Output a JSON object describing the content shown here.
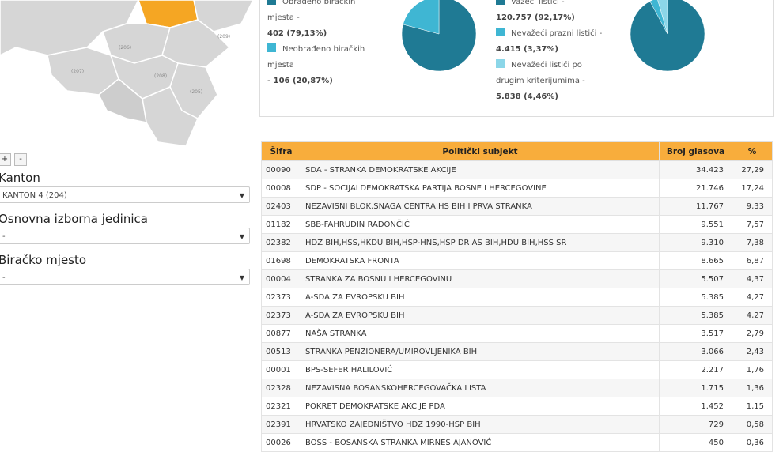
{
  "map_controls": {
    "zoom_in": "+",
    "zoom_out": "-"
  },
  "filters": [
    {
      "label": "Kanton",
      "selected": "KANTON 4 (204)"
    },
    {
      "label": "Osnovna izborna jedinica",
      "selected": "-"
    },
    {
      "label": "Biračko mjesto",
      "selected": "-"
    }
  ],
  "summaries": [
    {
      "items": [
        {
          "label": "Obrađeno biračkih mjesta -",
          "detail": "402 (79,13%)",
          "value": 79.13,
          "color": "#1f7a94"
        },
        {
          "label": "Neobrađeno biračkih mjesta",
          "detail": "- 106 (20,87%)",
          "value": 20.87,
          "color": "#3fb6d3"
        }
      ]
    },
    {
      "items": [
        {
          "label": "Važeći listići -",
          "detail": "120.757 (92,17%)",
          "value": 92.17,
          "color": "#1f7a94"
        },
        {
          "label": "Nevažeći prazni listići -",
          "detail": "4.415 (3,37%)",
          "value": 3.37,
          "color": "#3fb6d3"
        },
        {
          "label": "Nevažeći listići po drugim kriterijumima -",
          "detail": "5.838 (4,46%)",
          "value": 4.46,
          "color": "#8bd6e8"
        }
      ]
    }
  ],
  "table": {
    "header": [
      "Šifra",
      "Politički subjekt",
      "Broj glasova",
      "%"
    ],
    "rows": [
      [
        "00090",
        "SDA - STRANKA DEMOKRATSKE AKCIJE",
        "34.423",
        "27,29"
      ],
      [
        "00008",
        "SDP - SOCIJALDEMOKRATSKA PARTIJA BOSNE I HERCEGOVINE",
        "21.746",
        "17,24"
      ],
      [
        "02403",
        "NEZAVISNI BLOK,SNAGA CENTRA,HS BIH I PRVA STRANKA",
        "11.767",
        "9,33"
      ],
      [
        "01182",
        "SBB-FAHRUDIN RADONČIĆ",
        "9.551",
        "7,57"
      ],
      [
        "02382",
        "HDZ BIH,HSS,HKDU BIH,HSP-HNS,HSP DR AS BIH,HDU BIH,HSS SR",
        "9.310",
        "7,38"
      ],
      [
        "01698",
        "DEMOKRATSKA FRONTA",
        "8.665",
        "6,87"
      ],
      [
        "00004",
        "STRANKA ZA BOSNU I HERCEGOVINU",
        "5.507",
        "4,37"
      ],
      [
        "02373",
        "A-SDA ZA EVROPSKU BIH",
        "5.385",
        "4,27"
      ],
      [
        "02373",
        "A-SDA ZA EVROPSKU BIH",
        "5.385",
        "4,27"
      ],
      [
        "00877",
        "NAŠA STRANKA",
        "3.517",
        "2,79"
      ],
      [
        "00513",
        "STRANKA PENZIONERA/UMIROVLJENIKA BIH",
        "3.066",
        "2,43"
      ],
      [
        "00001",
        "BPS-SEFER HALILOVIĆ",
        "2.217",
        "1,76"
      ],
      [
        "02328",
        "NEZAVISNA BOSANSKOHERCEGOVAČKA LISTA",
        "1.715",
        "1,36"
      ],
      [
        "02321",
        "POKRET DEMOKRATSKE AKCIJE PDA",
        "1.452",
        "1,15"
      ],
      [
        "02391",
        "HRVATSKO ZAJEDNIŠTVO HDZ 1990-HSP BIH",
        "729",
        "0,58"
      ],
      [
        "00026",
        "BOSS - BOSANSKA STRANKA MIRNES AJANOVIĆ",
        "450",
        "0,36"
      ]
    ]
  }
}
